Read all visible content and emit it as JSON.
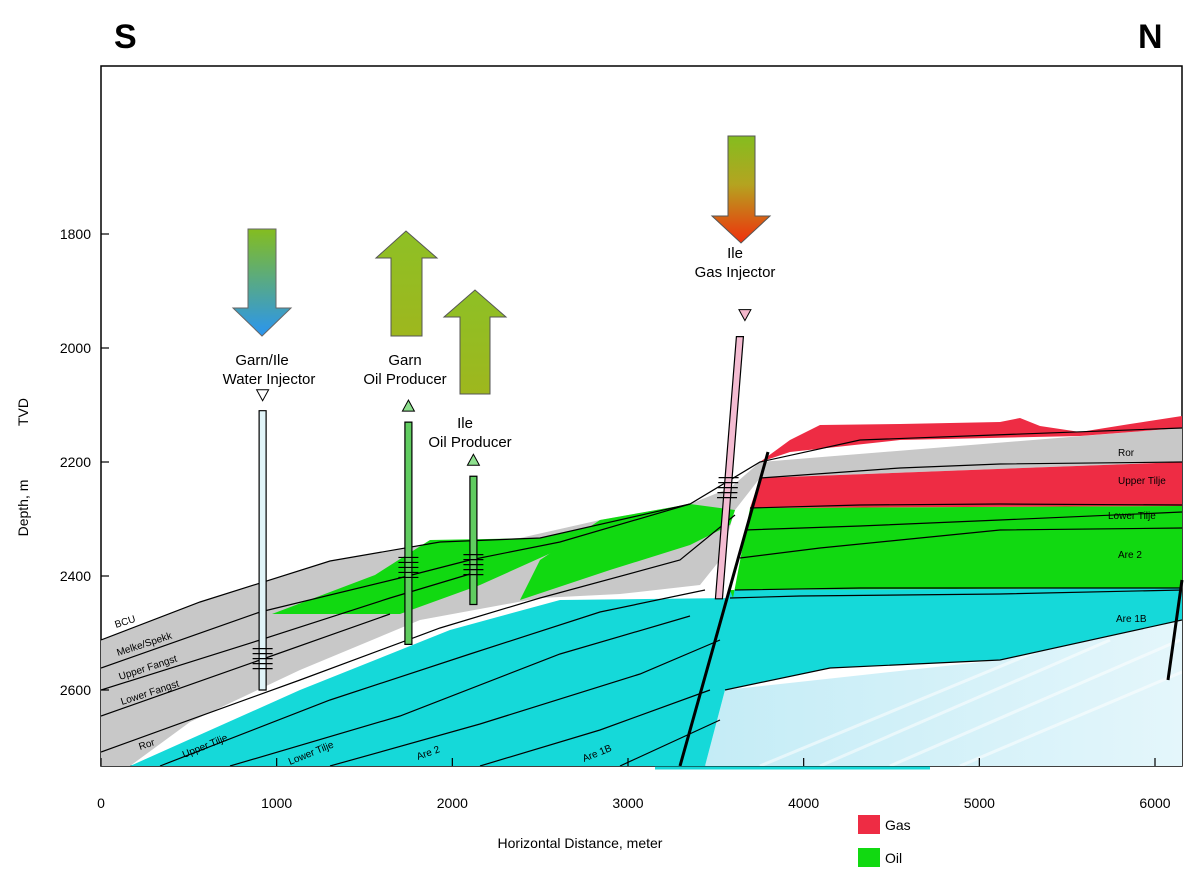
{
  "directions": {
    "south": "S",
    "north": "N"
  },
  "axes": {
    "xlabel": "Horizontal Distance, meter",
    "ylabel_tvd": "TVD",
    "ylabel_depth": "Depth, m",
    "x_ticks": [
      "0",
      "1000",
      "2000",
      "3000",
      "4000",
      "5000",
      "6000"
    ],
    "y_ticks": [
      "1800",
      "2000",
      "2200",
      "2400",
      "2600"
    ],
    "x_range": [
      0,
      6200
    ],
    "y_range": [
      1540,
      2740
    ]
  },
  "wells": [
    {
      "name_line1": "Garn/Ile",
      "name_line2": "Water Injector",
      "type": "water-injector",
      "x_m": 920,
      "top_tvd": 2110,
      "bottom_tvd": 2600,
      "perf_tvd": 2545
    },
    {
      "name_line1": "Garn",
      "name_line2": "Oil Producer",
      "type": "oil-producer",
      "x_m": 1750,
      "top_tvd": 2130,
      "bottom_tvd": 2520,
      "perf_tvd": 2385
    },
    {
      "name_line1": "Ile",
      "name_line2": "Oil Producer",
      "type": "oil-producer",
      "x_m": 2120,
      "top_tvd": 2225,
      "bottom_tvd": 2450,
      "perf_tvd": 2380
    },
    {
      "name_line1": "Ile",
      "name_line2": "Gas Injector",
      "type": "gas-injector",
      "x_m": 3620,
      "top_tvd": 1980,
      "bottom_tvd": 2440,
      "perf_tvd": 2245
    }
  ],
  "layer_labels": [
    "BCU",
    "Melke/Spekk",
    "Upper Fangst",
    "Lower Fangst",
    "Ror",
    "Upper Tilje",
    "Lower Tilje",
    "Are 2",
    "Are 1B",
    "Ror",
    "Upper Tilje",
    "Lower Tilje",
    "Are 2",
    "Are 1B"
  ],
  "legend": [
    {
      "label": "Gas",
      "color": "#ee2c44"
    },
    {
      "label": "Oil",
      "color": "#11d911"
    }
  ],
  "colors": {
    "shale": "#c8c8c8",
    "gas": "#ee2c44",
    "oil": "#11d911",
    "water_cyan": "#15d9d9",
    "water_light": "#c2eef8",
    "water_pale": "#daf4fa",
    "injector_gas_pipe": "#f4bcd2",
    "producer_pipe": "#60cc60",
    "water_injector_pipe": "#e0f4f8"
  }
}
